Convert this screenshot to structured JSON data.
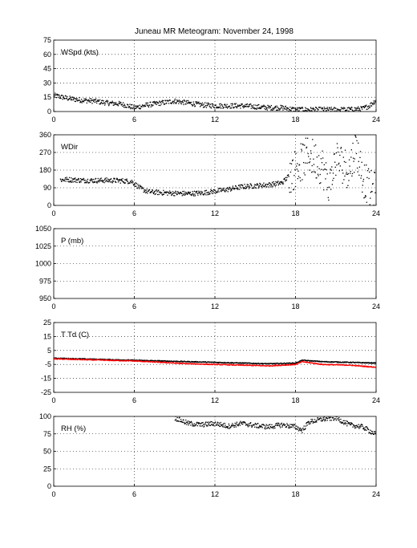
{
  "title": "Juneau MR Meteogram:   November 24, 1998",
  "colors": {
    "obs": "#000000",
    "dewpoint": "#ff0000",
    "grid": "#000000",
    "background": "#ffffff"
  },
  "chart_data": [
    {
      "type": "scatter",
      "label": "WSpd (kts)",
      "xlim": [
        0,
        24
      ],
      "ylim": [
        0,
        75
      ],
      "x_ticks": [
        0,
        6,
        12,
        18,
        24
      ],
      "y_ticks": [
        0,
        15,
        30,
        45,
        60,
        75
      ],
      "grid": true,
      "series": [
        {
          "color": "#000000",
          "x": [
            0,
            1,
            2,
            3,
            4,
            5,
            5.5,
            6,
            7,
            8,
            9,
            10,
            11,
            12,
            13,
            14,
            15,
            16,
            17,
            18,
            19,
            20,
            21,
            22,
            23,
            23.5,
            24
          ],
          "y": [
            17,
            14,
            12,
            11,
            9,
            8,
            6,
            4,
            7,
            9,
            11,
            9,
            7,
            6,
            6,
            6,
            5,
            4,
            4,
            2,
            2,
            2,
            2,
            2,
            3,
            6,
            12
          ]
        }
      ]
    },
    {
      "type": "scatter",
      "label": "WDir",
      "xlim": [
        0,
        24
      ],
      "ylim": [
        0,
        360
      ],
      "x_ticks": [
        0,
        6,
        12,
        18,
        24
      ],
      "y_ticks": [
        0,
        90,
        180,
        270,
        360
      ],
      "grid": true,
      "series": [
        {
          "color": "#000000",
          "x": [
            0.5,
            1,
            2,
            3,
            4,
            5,
            5.8,
            6.5,
            7,
            8,
            9,
            10,
            11,
            12,
            13,
            14,
            15,
            16,
            17,
            17.5,
            18,
            19,
            20,
            20.5,
            21,
            22,
            22.5,
            23,
            23.5,
            24
          ],
          "y": [
            130,
            132,
            128,
            127,
            128,
            126,
            122,
            85,
            70,
            65,
            62,
            60,
            63,
            72,
            82,
            95,
            100,
            105,
            115,
            150,
            190,
            260,
            200,
            80,
            240,
            180,
            300,
            150,
            80,
            75
          ]
        }
      ]
    },
    {
      "type": "scatter",
      "label": "P (mb)",
      "xlim": [
        0,
        24
      ],
      "ylim": [
        950,
        1050
      ],
      "x_ticks": [
        0,
        6,
        12,
        18,
        24
      ],
      "y_ticks": [
        950,
        975,
        1000,
        1025,
        1050
      ],
      "grid": true,
      "series": []
    },
    {
      "type": "line",
      "label": "T Td (C)",
      "xlim": [
        0,
        24
      ],
      "ylim": [
        -25,
        25
      ],
      "x_ticks": [
        0,
        6,
        12,
        18,
        24
      ],
      "y_ticks": [
        -25,
        -15,
        -5,
        5,
        15,
        25
      ],
      "grid": true,
      "series": [
        {
          "color": "#000000",
          "x": [
            0,
            2,
            4,
            6,
            8,
            10,
            12,
            14,
            16,
            18,
            18.5,
            20,
            22,
            24
          ],
          "y": [
            -0.5,
            -1,
            -1.5,
            -2,
            -2.5,
            -3,
            -3.5,
            -4,
            -4.5,
            -4,
            -2,
            -3,
            -3.5,
            -4
          ]
        },
        {
          "color": "#ff0000",
          "x": [
            0,
            2,
            4,
            6,
            8,
            10,
            12,
            14,
            16,
            18,
            18.5,
            20,
            22,
            24
          ],
          "y": [
            -1,
            -1.5,
            -2,
            -2.5,
            -3.5,
            -4.5,
            -5,
            -5.5,
            -6,
            -5,
            -3,
            -5,
            -5.5,
            -7
          ]
        }
      ]
    },
    {
      "type": "scatter",
      "label": "RH (%)",
      "xlim": [
        0,
        24
      ],
      "ylim": [
        0,
        100
      ],
      "x_ticks": [
        0,
        6,
        12,
        18,
        24
      ],
      "y_ticks": [
        0,
        25,
        50,
        75,
        100
      ],
      "grid": true,
      "series": [
        {
          "color": "#000000",
          "x": [
            9,
            10,
            11,
            12,
            13,
            14,
            15,
            16,
            17,
            18,
            18.5,
            19,
            20,
            21,
            22,
            23,
            24
          ],
          "y": [
            98,
            90,
            88,
            90,
            86,
            90,
            87,
            85,
            88,
            85,
            80,
            92,
            96,
            98,
            88,
            85,
            74
          ]
        }
      ]
    }
  ]
}
